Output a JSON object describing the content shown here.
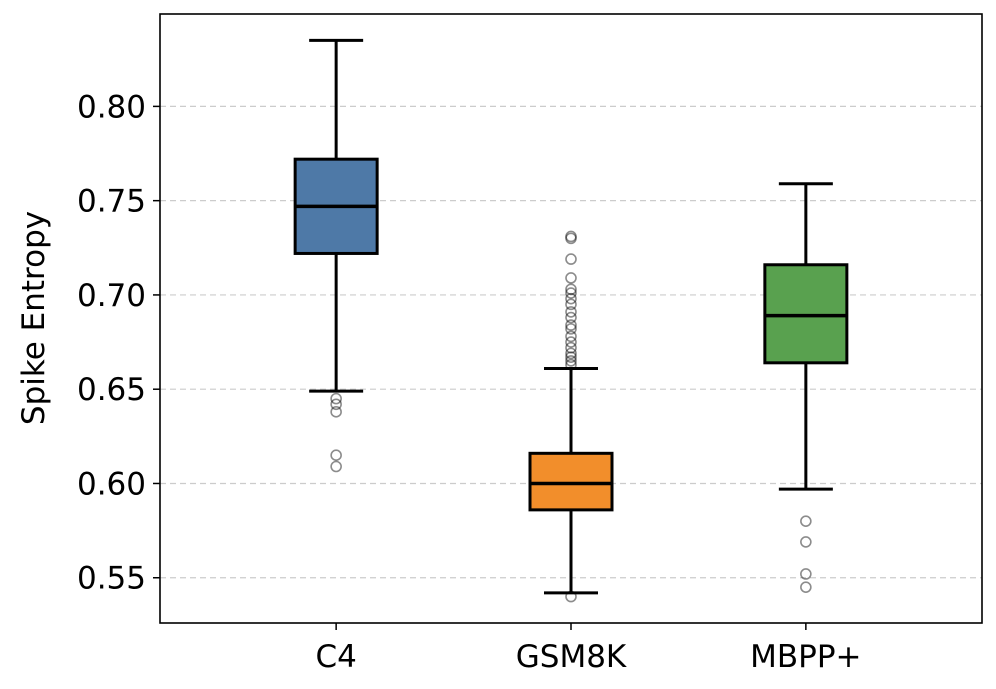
{
  "chart_data": {
    "type": "boxplot",
    "ylabel": "Spike Entropy",
    "xlabel": "",
    "ylim": [
      0.526,
      0.849
    ],
    "yticks": [
      0.55,
      0.6,
      0.65,
      0.7,
      0.75,
      0.8
    ],
    "ytick_labels": [
      "0.55",
      "0.60",
      "0.65",
      "0.70",
      "0.75",
      "0.80"
    ],
    "grid": "horizontal dashed",
    "categories": [
      "C4",
      "GSM8K",
      "MBPP+"
    ],
    "boxes": [
      {
        "name": "C4",
        "color": "#4e79a7",
        "whisker_low": 0.649,
        "q1": 0.722,
        "median": 0.747,
        "q3": 0.772,
        "whisker_high": 0.835,
        "outliers": [
          0.645,
          0.642,
          0.638,
          0.615,
          0.609
        ]
      },
      {
        "name": "GSM8K",
        "color": "#f28e2b",
        "whisker_low": 0.542,
        "q1": 0.586,
        "median": 0.6,
        "q3": 0.616,
        "whisker_high": 0.661,
        "outliers": [
          0.54,
          0.663,
          0.665,
          0.667,
          0.669,
          0.672,
          0.675,
          0.678,
          0.682,
          0.684,
          0.688,
          0.691,
          0.695,
          0.698,
          0.701,
          0.703,
          0.709,
          0.719,
          0.73,
          0.731
        ]
      },
      {
        "name": "MBPP+",
        "color": "#59a14f",
        "whisker_low": 0.597,
        "q1": 0.664,
        "median": 0.689,
        "q3": 0.716,
        "whisker_high": 0.759,
        "outliers": [
          0.58,
          0.569,
          0.552,
          0.545
        ]
      }
    ]
  }
}
